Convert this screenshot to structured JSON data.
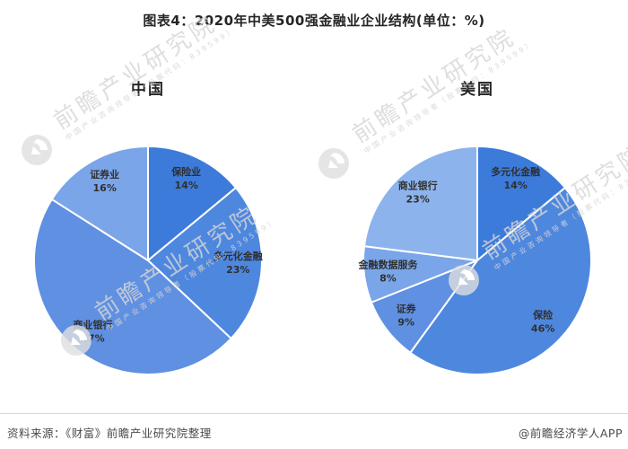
{
  "header": {
    "title": "图表4：2020年中美500强金融业企业结构(单位：%)"
  },
  "watermark": {
    "text": "前瞻产业研究院",
    "subtext": "中国产业咨询领导者（股票代码：839599）"
  },
  "footer": {
    "source": "资料来源：《财富》前瞻产业研究院整理",
    "credit": "@前瞻经济学人APP"
  },
  "chart_data": [
    {
      "type": "pie",
      "title": "中国",
      "start_angle": "top",
      "direction": "clockwise",
      "label_style": "inside, name + percent",
      "slices": [
        {
          "label": "保险业",
          "value": 14,
          "color": "#3c7bd9"
        },
        {
          "label": "多元化金融",
          "value": 23,
          "color": "#4e87de"
        },
        {
          "label": "商业银行",
          "value": 47,
          "color": "#5f90e1"
        },
        {
          "label": "证券业",
          "value": 16,
          "color": "#7ba5e9"
        }
      ]
    },
    {
      "type": "pie",
      "title": "美国",
      "start_angle": "top",
      "direction": "clockwise",
      "label_style": "inside, name + percent",
      "slices": [
        {
          "label": "多元化金融",
          "value": 14,
          "color": "#3c7bd9"
        },
        {
          "label": "保险",
          "value": 46,
          "color": "#4e87de"
        },
        {
          "label": "证券",
          "value": 9,
          "color": "#5f90e1"
        },
        {
          "label": "金融数据服务",
          "value": 8,
          "color": "#7ba5e9"
        },
        {
          "label": "商业银行",
          "value": 23,
          "color": "#8db3ec"
        }
      ]
    }
  ]
}
